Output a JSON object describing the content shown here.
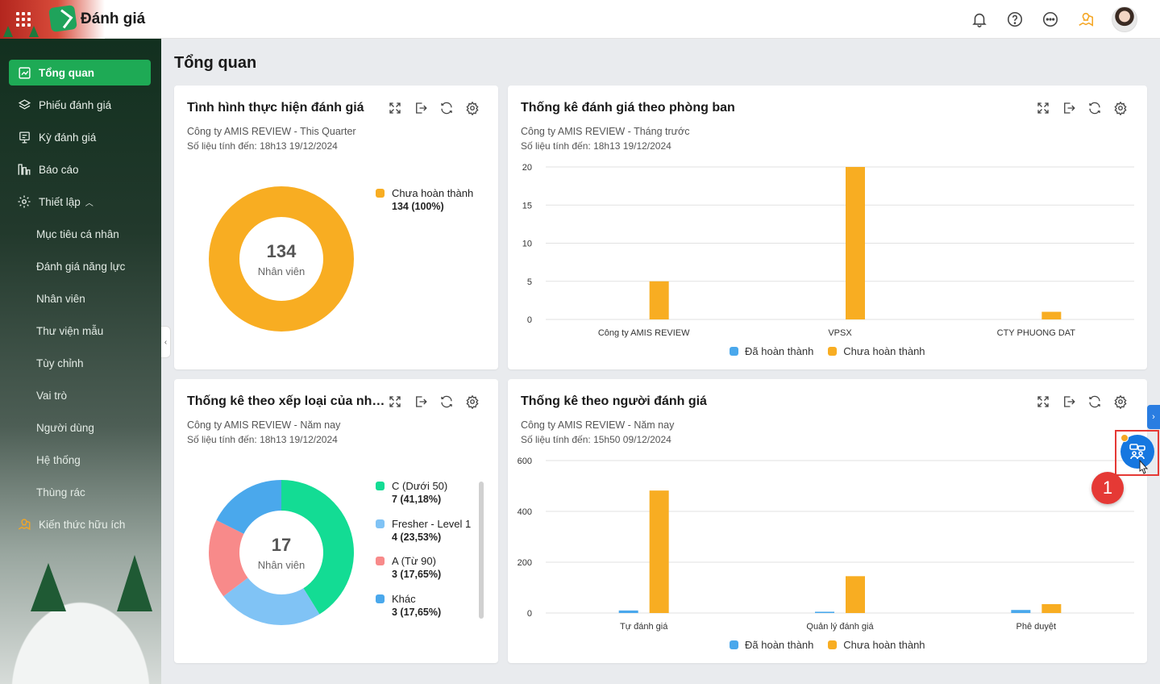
{
  "app": {
    "title": "Đánh giá"
  },
  "sidebar": {
    "items": [
      {
        "label": "Tổng quan",
        "icon": "chart-line-icon",
        "active": true
      },
      {
        "label": "Phiếu đánh giá",
        "icon": "layers-icon"
      },
      {
        "label": "Kỳ đánh giá",
        "icon": "calendar-list-icon"
      },
      {
        "label": "Báo cáo",
        "icon": "bar-chart-icon"
      },
      {
        "label": "Thiết lập",
        "icon": "gear-icon",
        "expanded": true
      }
    ],
    "sub_items": [
      "Mục tiêu cá nhân",
      "Đánh giá năng lực",
      "Nhân viên",
      "Thư viện mẫu",
      "Tùy chỉnh",
      "Vai trò",
      "Người dùng",
      "Hệ thống",
      "Thùng rác"
    ],
    "extra": {
      "label": "Kiến thức hữu ích",
      "icon": "lightbulb-icon"
    }
  },
  "page": {
    "title": "Tổng quan"
  },
  "colors": {
    "accent_green": "#1eaa55",
    "orange": "#f8ad22",
    "blue": "#4aa8ec",
    "teal": "#13dc94",
    "light_blue": "#80c3f5",
    "pink": "#f88a8a"
  },
  "cards": {
    "progress": {
      "title": "Tình hình thực hiện đánh giá",
      "subtitle": "Công ty AMIS REVIEW - This Quarter",
      "updated": "Số liệu tính đến: 18h13 19/12/2024",
      "center_value": "134",
      "center_label": "Nhân viên",
      "legend": [
        {
          "name": "Chưa hoàn thành",
          "value": "134 (100%)"
        }
      ]
    },
    "department": {
      "title": "Thống kê đánh giá theo phòng ban",
      "subtitle": "Công ty AMIS REVIEW - Tháng trước",
      "updated": "Số liệu tính đến: 18h13 19/12/2024",
      "legend": [
        "Đã hoàn thành",
        "Chưa hoàn thành"
      ]
    },
    "rank": {
      "title": "Thống kê theo xếp loại của nhâ...",
      "subtitle": "Công ty AMIS REVIEW - Năm nay",
      "updated": "Số liệu tính đến: 18h13 19/12/2024",
      "center_value": "17",
      "center_label": "Nhân viên",
      "legend": [
        {
          "name": "C (Dưới 50)",
          "value": "7 (41,18%)"
        },
        {
          "name": "Fresher - Level 1",
          "value": "4 (23,53%)"
        },
        {
          "name": "A (Từ 90)",
          "value": "3 (17,65%)"
        },
        {
          "name": "Khác",
          "value": "3 (17,65%)"
        }
      ]
    },
    "evaluator": {
      "title": "Thống kê theo người đánh giá",
      "subtitle": "Công ty AMIS REVIEW - Năm nay",
      "updated": "Số liệu tính đến: 15h50 09/12/2024",
      "legend": [
        "Đã hoàn thành",
        "Chưa hoàn thành"
      ]
    }
  },
  "chart_data": [
    {
      "type": "pie",
      "categories": [
        "Chưa hoàn thành"
      ],
      "values": [
        134
      ],
      "title": "Tình hình thực hiện đánh giá"
    },
    {
      "type": "bar",
      "title": "Thống kê đánh giá theo phòng ban",
      "categories": [
        "Công ty AMIS REVIEW",
        "VPSX",
        "CTY PHUONG DAT"
      ],
      "series": [
        {
          "name": "Đã hoàn thành",
          "values": [
            0,
            0,
            0
          ]
        },
        {
          "name": "Chưa hoàn thành",
          "values": [
            5,
            20,
            1
          ]
        }
      ],
      "yticks": [
        "0",
        "5",
        "10",
        "15",
        "20"
      ],
      "ylim": [
        0,
        20
      ],
      "grid": true,
      "legend": "bottom"
    },
    {
      "type": "pie",
      "title": "Thống kê theo xếp loại của nhâ...",
      "categories": [
        "C (Dưới 50)",
        "Fresher - Level 1",
        "A (Từ 90)",
        "Khác"
      ],
      "values": [
        7,
        4,
        3,
        3
      ]
    },
    {
      "type": "bar",
      "title": "Thống kê theo người đánh giá",
      "categories": [
        "Tự đánh giá",
        "Quản lý đánh giá",
        "Phê duyệt"
      ],
      "series": [
        {
          "name": "Đã hoàn thành",
          "values": [
            10,
            5,
            12
          ]
        },
        {
          "name": "Chưa hoàn thành",
          "values": [
            482,
            145,
            35
          ]
        }
      ],
      "yticks": [
        "0",
        "200",
        "400",
        "600"
      ],
      "ylim": [
        0,
        600
      ],
      "grid": true,
      "legend": "bottom"
    }
  ],
  "overlay": {
    "step_number": "1"
  }
}
